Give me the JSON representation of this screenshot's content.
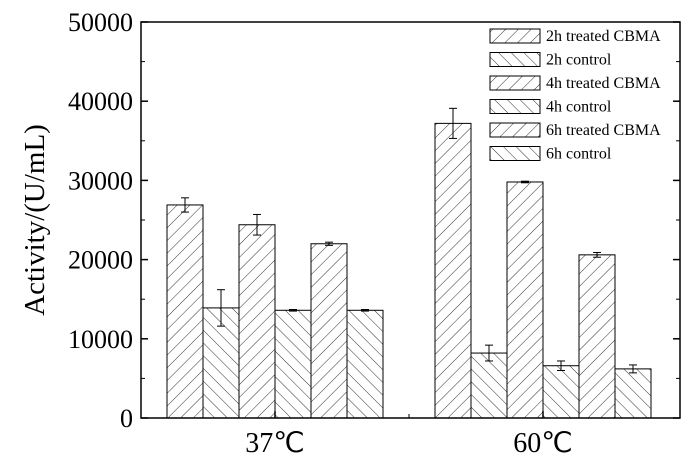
{
  "chart_data": {
    "type": "bar",
    "categories": [
      "37℃",
      "60℃"
    ],
    "series": [
      {
        "name": "2h treated CBMA",
        "values": [
          26900,
          37200
        ],
        "errors": [
          900,
          1900
        ],
        "hatch": "forward"
      },
      {
        "name": "2h control",
        "values": [
          13900,
          8200
        ],
        "errors": [
          2300,
          1000
        ],
        "hatch": "backward"
      },
      {
        "name": "4h treated CBMA",
        "values": [
          24400,
          29800
        ],
        "errors": [
          1300,
          100
        ],
        "hatch": "forward"
      },
      {
        "name": "4h control",
        "values": [
          13600,
          6600
        ],
        "errors": [
          100,
          600
        ],
        "hatch": "backward"
      },
      {
        "name": "6h treated CBMA",
        "values": [
          22000,
          20600
        ],
        "errors": [
          200,
          300
        ],
        "hatch": "forward"
      },
      {
        "name": "6h control",
        "values": [
          13600,
          6200
        ],
        "errors": [
          100,
          500
        ],
        "hatch": "backward"
      }
    ],
    "ylabel": "Activity/(U/mL)",
    "xlabel": "",
    "ylim": [
      0,
      50000
    ],
    "yticks": [
      "0",
      "10000",
      "20000",
      "30000",
      "40000",
      "50000"
    ],
    "legend_position": "top-right",
    "grid": false
  }
}
